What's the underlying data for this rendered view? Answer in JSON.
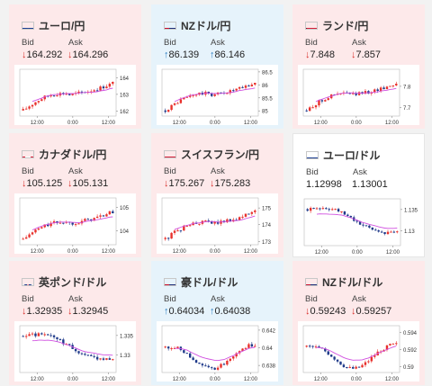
{
  "colors": {
    "down_bg": "#fde9ea",
    "up_bg": "#e6f3fb",
    "flat_bg": "#ffffff",
    "candle_up": "#e8312c",
    "candle_down": "#1f3a8a",
    "ma_line": "#d04fe0",
    "arrow_down": "#d9302c",
    "arrow_up": "#2d7fc1"
  },
  "bid_label": "Bid",
  "ask_label": "Ask",
  "cards": [
    {
      "name": "ユーロ/円",
      "flag": "eu",
      "trend": "down",
      "bid_arrow": "↓",
      "bid": "164.292",
      "ask_arrow": "↓",
      "ask": "164.296",
      "chart": {
        "type": "candlestick",
        "xticks": [
          "12:00",
          "0:00",
          "12:00"
        ],
        "yticks": [
          "164",
          "163",
          "162"
        ],
        "ylim": [
          161.7,
          164.5
        ],
        "shape": "rise"
      }
    },
    {
      "name": "NZドル/円",
      "flag": "nz",
      "trend": "up",
      "bid_arrow": "↑",
      "bid": "86.139",
      "ask_arrow": "↑",
      "ask": "86.146",
      "chart": {
        "type": "candlestick",
        "xticks": [
          "12:00",
          "0:00",
          "12:00"
        ],
        "yticks": [
          "86.5",
          "86",
          "85.5",
          "85"
        ],
        "ylim": [
          84.8,
          86.6
        ],
        "shape": "rise"
      }
    },
    {
      "name": "ランド/円",
      "flag": "za",
      "trend": "down",
      "bid_arrow": "↓",
      "bid": "7.848",
      "ask_arrow": "↓",
      "ask": "7.857",
      "chart": {
        "type": "candlestick",
        "xticks": [
          "12:00",
          "0:00",
          "12:00"
        ],
        "yticks": [
          "7.8",
          "7.7"
        ],
        "ylim": [
          7.66,
          7.88
        ],
        "shape": "rise"
      }
    },
    {
      "name": "カナダドル/円",
      "flag": "ca",
      "trend": "down",
      "bid_arrow": "↓",
      "bid": "105.125",
      "ask_arrow": "↓",
      "ask": "105.131",
      "chart": {
        "type": "candlestick",
        "xticks": [
          "12:00",
          "0:00",
          "12:00"
        ],
        "yticks": [
          "105",
          "104"
        ],
        "ylim": [
          103.4,
          105.4
        ],
        "shape": "rise"
      }
    },
    {
      "name": "スイスフラン/円",
      "flag": "ch",
      "trend": "down",
      "bid_arrow": "↓",
      "bid": "175.267",
      "ask_arrow": "↓",
      "ask": "175.283",
      "chart": {
        "type": "candlestick",
        "xticks": [
          "12:00",
          "0:00",
          "12:00"
        ],
        "yticks": [
          "175",
          "174",
          "173"
        ],
        "ylim": [
          172.8,
          175.6
        ],
        "shape": "rise"
      }
    },
    {
      "name": "ユーロ/ドル",
      "flag": "eu",
      "trend": "flat",
      "bid_arrow": "",
      "bid": "1.12998",
      "ask_arrow": "",
      "ask": "1.13001",
      "chart": {
        "type": "candlestick",
        "xticks": [
          "12:00",
          "0:00",
          "12:00"
        ],
        "yticks": [
          "1.135",
          "1.13"
        ],
        "ylim": [
          1.1265,
          1.1375
        ],
        "shape": "fall"
      }
    },
    {
      "name": "英ポンド/ドル",
      "flag": "gb",
      "trend": "down",
      "bid_arrow": "↓",
      "bid": "1.32935",
      "ask_arrow": "↓",
      "ask": "1.32945",
      "chart": {
        "type": "candlestick",
        "xticks": [
          "12:00",
          "0:00",
          "12:00"
        ],
        "yticks": [
          "1.335",
          "1.33"
        ],
        "ylim": [
          1.3255,
          1.3375
        ],
        "shape": "fall"
      }
    },
    {
      "name": "豪ドル/ドル",
      "flag": "au",
      "trend": "up",
      "bid_arrow": "↑",
      "bid": "0.64034",
      "ask_arrow": "↑",
      "ask": "0.64038",
      "chart": {
        "type": "candlestick",
        "xticks": [
          "12:00",
          "0:00",
          "12:00"
        ],
        "yticks": [
          "0.642",
          "0.64",
          "0.638"
        ],
        "ylim": [
          0.6372,
          0.6425
        ],
        "shape": "dip"
      }
    },
    {
      "name": "NZドル/ドル",
      "flag": "nz",
      "trend": "down",
      "bid_arrow": "↓",
      "bid": "0.59243",
      "ask_arrow": "↓",
      "ask": "0.59257",
      "chart": {
        "type": "candlestick",
        "xticks": [
          "12:00",
          "0:00",
          "12:00"
        ],
        "yticks": [
          "0.594",
          "0.592",
          "0.59"
        ],
        "ylim": [
          0.5893,
          0.5948
        ],
        "shape": "dip"
      }
    }
  ]
}
